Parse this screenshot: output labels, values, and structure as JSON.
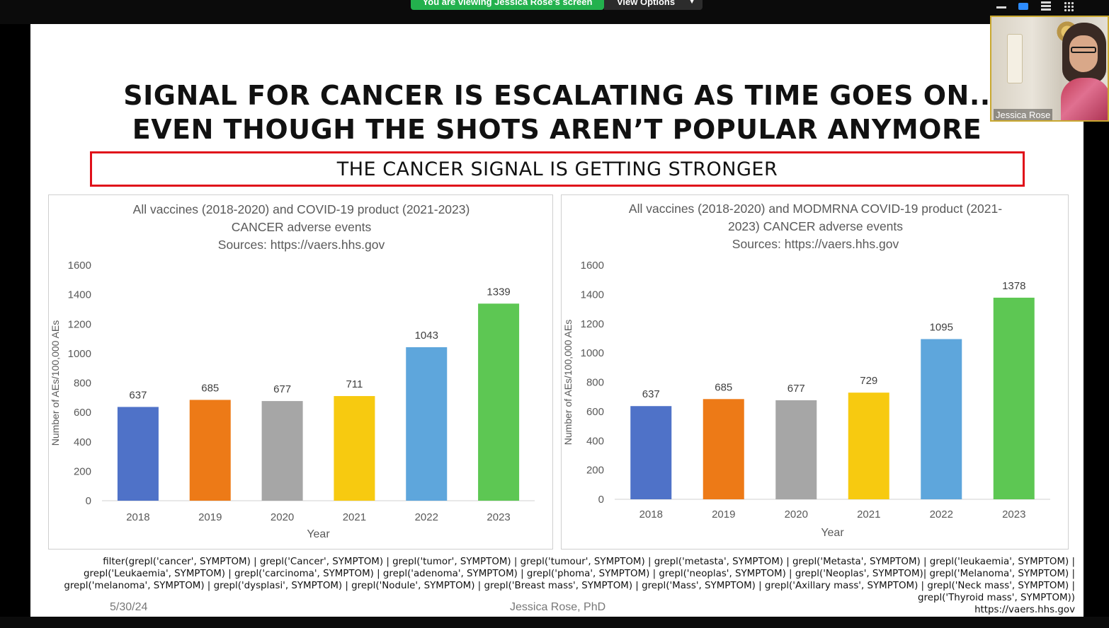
{
  "zoom": {
    "viewing_banner": "You are viewing Jessica Rose's screen",
    "view_options_label": "View Options",
    "accent_color": "#2d8cff",
    "banner_color": "#23b14d"
  },
  "participant": {
    "name": "Jessica Rose"
  },
  "slide": {
    "title_line1": "SIGNAL FOR CANCER IS ESCALATING AS TIME GOES ON..",
    "title_line2": "EVEN THOUGH THE SHOTS AREN’T POPULAR ANYMORE",
    "subtitle": "THE CANCER SIGNAL IS GETTING STRONGER",
    "query_lines": [
      "filter(grepl('cancer', SYMPTOM) | grepl('Cancer', SYMPTOM) | grepl('tumor', SYMPTOM) | grepl('tumour', SYMPTOM) | grepl('metasta', SYMPTOM) | grepl('Metasta', SYMPTOM) | grepl('leukaemia', SYMPTOM) |",
      "grepl('Leukaemia', SYMPTOM) | grepl('carcinoma', SYMPTOM) | grepl('adenoma', SYMPTOM) | grepl('phoma', SYMPTOM) | grepl('neoplas', SYMPTOM) | grepl('Neoplas', SYMPTOM)| grepl('Melanoma', SYMPTOM) |",
      "grepl('melanoma', SYMPTOM) | grepl('dysplasi', SYMPTOM) | grepl('Nodule', SYMPTOM) | grepl('Breast mass', SYMPTOM) | grepl('Mass', SYMPTOM) | grepl('Axillary mass', SYMPTOM) | grepl('Neck mass', SYMPTOM) |",
      "grepl('Thyroid mass', SYMPTOM))",
      "https://vaers.hhs.gov"
    ],
    "footer_date": "5/30/24",
    "footer_author": "Jessica Rose, PhD",
    "border_color": "#e0101a"
  },
  "chart_data": [
    {
      "type": "bar",
      "title_lines": [
        "All vaccines (2018-2020) and COVID-19 product (2021-2023)",
        "CANCER adverse events",
        "Sources: https://vaers.hhs.gov"
      ],
      "xlabel": "Year",
      "ylabel": "Number of AEs/100,000 AEs",
      "categories": [
        "2018",
        "2019",
        "2020",
        "2021",
        "2022",
        "2023"
      ],
      "values": [
        637,
        685,
        677,
        711,
        1043,
        1339
      ],
      "colors": [
        "#4f72c8",
        "#ed7a17",
        "#a6a6a6",
        "#f7ca10",
        "#5ea6dc",
        "#5dc753"
      ],
      "ylim": [
        0,
        1600
      ],
      "yticks": [
        0,
        200,
        400,
        600,
        800,
        1000,
        1200,
        1400,
        1600
      ],
      "grid": false,
      "legend": "none"
    },
    {
      "type": "bar",
      "title_lines": [
        "All vaccines (2018-2020) and MODMRNA COVID-19 product (2021-",
        "2023) CANCER adverse events",
        "Sources: https://vaers.hhs.gov"
      ],
      "xlabel": "Year",
      "ylabel": "Number of AEs/100,000 AEs",
      "categories": [
        "2018",
        "2019",
        "2020",
        "2021",
        "2022",
        "2023"
      ],
      "values": [
        637,
        685,
        677,
        729,
        1095,
        1378
      ],
      "colors": [
        "#4f72c8",
        "#ed7a17",
        "#a6a6a6",
        "#f7ca10",
        "#5ea6dc",
        "#5dc753"
      ],
      "ylim": [
        0,
        1600
      ],
      "yticks": [
        0,
        200,
        400,
        600,
        800,
        1000,
        1200,
        1400,
        1600
      ],
      "grid": false,
      "legend": "none"
    }
  ]
}
